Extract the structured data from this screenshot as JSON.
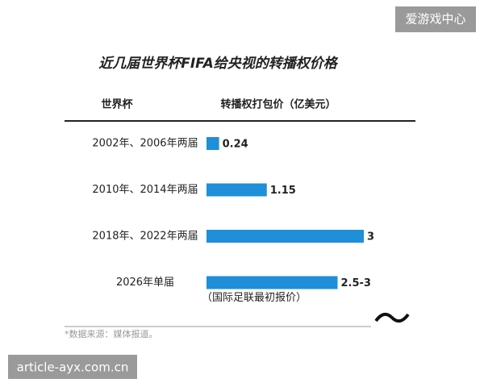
{
  "chart_data": {
    "type": "bar",
    "orientation": "horizontal",
    "title": "近几届世界杯FIFA给央视的转播权价格",
    "category_header": "世界杯",
    "value_header": "转播权打包价（亿美元）",
    "categories": [
      "2002年、2006年两届",
      "2010年、2014年两届",
      "2018年、2022年两届",
      "2026年单届"
    ],
    "values": [
      0.24,
      1.15,
      3,
      2.5
    ],
    "value_labels": [
      "0.24",
      "1.15",
      "3",
      "2.5-3"
    ],
    "color": "#1e8fd8",
    "note": "（国际足联最初报价）",
    "source": "*数据来源：媒体报道。"
  },
  "watermarks": {
    "top": "爱游戏中心",
    "bottom": "article-ayx.com.cn"
  }
}
